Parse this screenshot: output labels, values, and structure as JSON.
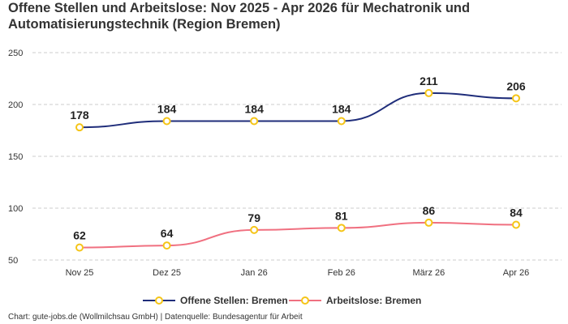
{
  "chart_data": {
    "type": "line",
    "title_line1": "Offene Stellen und Arbeitslose: Nov 2025 - Apr 2026 für Mechatronik und",
    "title_line2": "Automatisierungstechnik (Region Bremen)",
    "categories": [
      "Nov 25",
      "Dez 25",
      "Jan 26",
      "Feb 26",
      "März 26",
      "Apr 26"
    ],
    "series": [
      {
        "name": "Offene Stellen: Bremen",
        "values": [
          178,
          184,
          184,
          184,
          211,
          206
        ],
        "color": "#1f2d7a"
      },
      {
        "name": "Arbeitslose: Bremen",
        "values": [
          62,
          64,
          79,
          81,
          86,
          84
        ],
        "color": "#f07080"
      }
    ],
    "yticks": [
      50,
      100,
      150,
      200,
      250
    ],
    "ylim": [
      50,
      250
    ],
    "grid": "horizontal-dashed",
    "legend_position": "bottom-center",
    "marker_color": "#f5c518",
    "source": "Chart: gute-jobs.de (Wollmilchsau GmbH) | Datenquelle: Bundesagentur für Arbeit"
  }
}
